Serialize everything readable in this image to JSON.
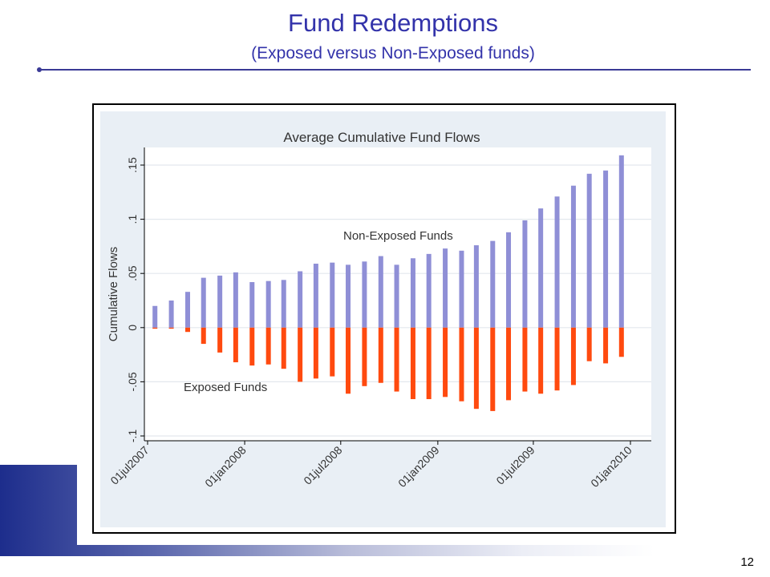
{
  "slide": {
    "title": "Fund Redemptions",
    "subtitle": "(Exposed versus Non-Exposed funds)",
    "page_number": "12"
  },
  "colors": {
    "title": "#3333aa",
    "non_exposed": "#8f8fd6",
    "exposed": "#ff4a0f",
    "chart_bg": "#e9eff5",
    "plot_bg": "#ffffff"
  },
  "chart_data": {
    "type": "bar",
    "title": "Average Cumulative Fund Flows",
    "xlabel": "",
    "ylabel": "Cumulative Flows",
    "ylim": [
      -0.1,
      0.15
    ],
    "grid": true,
    "y_ticks": [
      {
        "value": -0.1,
        "label": "-.1"
      },
      {
        "value": -0.05,
        "label": "-.05"
      },
      {
        "value": 0,
        "label": "0"
      },
      {
        "value": 0.05,
        "label": ".05"
      },
      {
        "value": 0.1,
        "label": ".1"
      },
      {
        "value": 0.15,
        "label": ".15"
      }
    ],
    "x_ticks": [
      "01jul2007",
      "01jan2008",
      "01jul2008",
      "01jan2009",
      "01jul2009",
      "01jan2010"
    ],
    "categories": [
      "2007-07-15",
      "2007-08-15",
      "2007-09-15",
      "2007-10-15",
      "2007-11-15",
      "2007-12-15",
      "2008-01-15",
      "2008-02-15",
      "2008-03-15",
      "2008-04-15",
      "2008-05-15",
      "2008-06-15",
      "2008-07-15",
      "2008-08-15",
      "2008-09-15",
      "2008-10-15",
      "2008-11-15",
      "2008-12-15",
      "2009-01-15",
      "2009-02-15",
      "2009-03-15",
      "2009-04-15",
      "2009-05-15",
      "2009-06-15",
      "2009-07-15",
      "2009-08-15",
      "2009-09-15",
      "2009-10-15",
      "2009-11-15",
      "2009-12-15"
    ],
    "series": [
      {
        "name": "Non-Exposed Funds",
        "values": [
          0.02,
          0.025,
          0.033,
          0.046,
          0.048,
          0.051,
          0.042,
          0.043,
          0.044,
          0.052,
          0.059,
          0.06,
          0.058,
          0.061,
          0.066,
          0.058,
          0.064,
          0.068,
          0.073,
          0.071,
          0.076,
          0.08,
          0.088,
          0.099,
          0.11,
          0.121,
          0.131,
          0.142,
          0.145,
          0.159
        ]
      },
      {
        "name": "Exposed Funds",
        "values": [
          -0.001,
          -0.001,
          -0.004,
          -0.015,
          -0.023,
          -0.032,
          -0.035,
          -0.034,
          -0.038,
          -0.05,
          -0.047,
          -0.045,
          -0.061,
          -0.054,
          -0.051,
          -0.059,
          -0.066,
          -0.066,
          -0.064,
          -0.068,
          -0.075,
          -0.077,
          -0.067,
          -0.059,
          -0.061,
          -0.058,
          -0.053,
          -0.031,
          -0.033,
          -0.027
        ]
      }
    ],
    "annotations": [
      {
        "text": "Non-Exposed Funds",
        "series": "Non-Exposed Funds"
      },
      {
        "text": "Exposed Funds",
        "series": "Exposed Funds"
      }
    ]
  }
}
